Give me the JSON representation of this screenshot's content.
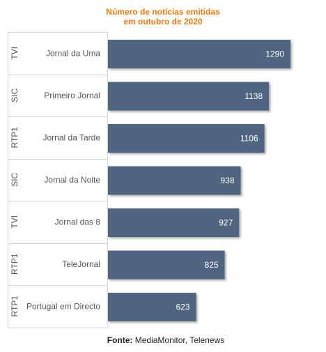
{
  "chart_data": {
    "type": "bar",
    "orientation": "horizontal",
    "title_line1": "Número de notícias emitidas",
    "title_line2": "em outubro de 2020",
    "groups": [
      "TVI",
      "SIC",
      "RTP1",
      "SIC",
      "TVI",
      "RTP1",
      "RTP1"
    ],
    "categories": [
      "Jornal da Uma",
      "Primeiro Jornal",
      "Jornal da Tarde",
      "Jornal da Noite",
      "Jornal das 8",
      "TeleJornal",
      "Portugal em Directo"
    ],
    "values": [
      1290,
      1138,
      1106,
      938,
      927,
      825,
      623
    ],
    "bar_color": "#4f6580",
    "label_color": "#ffffff",
    "xlim": [
      0,
      1290
    ]
  },
  "source": {
    "label": "Fonte:",
    "text": "MediaMonitor, Telenews"
  }
}
